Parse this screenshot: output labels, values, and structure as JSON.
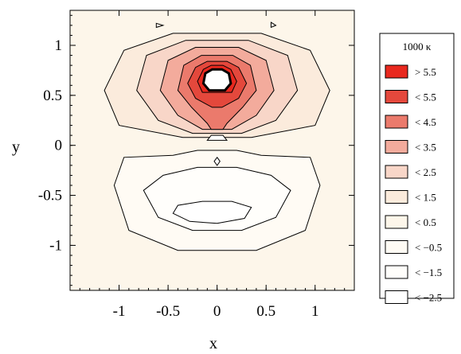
{
  "chart_data": {
    "type": "contour",
    "xlabel": "x",
    "ylabel": "y",
    "xlim": [
      -1.5,
      1.4
    ],
    "ylim": [
      -1.45,
      1.35
    ],
    "x_ticks": [
      -1,
      -0.5,
      0,
      0.5,
      1
    ],
    "x_tick_labels": [
      "-1",
      "-0.5",
      "0",
      "0.5",
      "1"
    ],
    "y_ticks": [
      1,
      0.5,
      0,
      -0.5,
      -1
    ],
    "y_tick_labels": [
      "1",
      "0.5",
      "0",
      "-0.5",
      "-1"
    ],
    "legend": {
      "title": "1000 κ",
      "placement": "right",
      "entries": [
        {
          "label": "> 5.5",
          "color": "#e8281e"
        },
        {
          "label": "< 5.5",
          "color": "#e4483c"
        },
        {
          "label": "< 4.5",
          "color": "#eb7a6c"
        },
        {
          "label": "< 3.5",
          "color": "#f3ab9c"
        },
        {
          "label": "< 2.5",
          "color": "#f8d6c8"
        },
        {
          "label": "< 1.5",
          "color": "#fbebdc"
        },
        {
          "label": "< 0.5",
          "color": "#fdf6ea"
        },
        {
          "label": "< −0.5",
          "color": "#fffbf4"
        },
        {
          "label": "< −1.5",
          "color": "#fffefb"
        },
        {
          "label": "< −2.5",
          "color": "#ffffff"
        }
      ]
    },
    "contours": [
      {
        "level": 0.5,
        "fill": "#fbebdc",
        "points": [
          [
            -0.95,
            0.95
          ],
          [
            -1.15,
            0.55
          ],
          [
            -1.0,
            0.2
          ],
          [
            -0.35,
            0.08
          ],
          [
            0.35,
            0.08
          ],
          [
            1.0,
            0.2
          ],
          [
            1.15,
            0.55
          ],
          [
            0.95,
            0.95
          ],
          [
            0.45,
            1.12
          ],
          [
            -0.45,
            1.12
          ]
        ]
      },
      {
        "level": 1.5,
        "fill": "#f8d6c8",
        "points": [
          [
            -0.72,
            0.9
          ],
          [
            -0.82,
            0.55
          ],
          [
            -0.6,
            0.25
          ],
          [
            -0.25,
            0.12
          ],
          [
            0.25,
            0.12
          ],
          [
            0.6,
            0.25
          ],
          [
            0.82,
            0.55
          ],
          [
            0.72,
            0.9
          ],
          [
            0.32,
            1.05
          ],
          [
            -0.32,
            1.05
          ]
        ]
      },
      {
        "level": 2.5,
        "fill": "#f3ab9c",
        "points": [
          [
            -0.5,
            0.85
          ],
          [
            -0.58,
            0.55
          ],
          [
            -0.4,
            0.3
          ],
          [
            -0.15,
            0.16
          ],
          [
            0.15,
            0.16
          ],
          [
            0.4,
            0.3
          ],
          [
            0.58,
            0.55
          ],
          [
            0.5,
            0.85
          ],
          [
            0.22,
            0.98
          ],
          [
            -0.22,
            0.98
          ]
        ]
      },
      {
        "level": 3.5,
        "fill": "#eb7a6c",
        "points": [
          [
            -0.34,
            0.8
          ],
          [
            -0.4,
            0.55
          ],
          [
            -0.26,
            0.38
          ],
          [
            -0.1,
            0.22
          ],
          [
            -0.06,
            0.16
          ],
          [
            0.06,
            0.16
          ],
          [
            0.1,
            0.22
          ],
          [
            0.26,
            0.38
          ],
          [
            0.4,
            0.55
          ],
          [
            0.34,
            0.8
          ],
          [
            0.16,
            0.9
          ],
          [
            -0.16,
            0.9
          ]
        ]
      },
      {
        "level": 4.5,
        "fill": "#e4483c",
        "points": [
          [
            -0.22,
            0.78
          ],
          [
            -0.3,
            0.62
          ],
          [
            -0.22,
            0.47
          ],
          [
            -0.05,
            0.38
          ],
          [
            0.05,
            0.38
          ],
          [
            0.22,
            0.47
          ],
          [
            0.3,
            0.62
          ],
          [
            0.22,
            0.78
          ],
          [
            0.1,
            0.84
          ],
          [
            -0.1,
            0.84
          ]
        ]
      },
      {
        "level": 5.5,
        "fill": "#e8281e",
        "points": [
          [
            -0.14,
            0.76
          ],
          [
            -0.2,
            0.64
          ],
          [
            -0.15,
            0.53
          ],
          [
            0.15,
            0.53
          ],
          [
            0.2,
            0.64
          ],
          [
            0.14,
            0.76
          ],
          [
            0.06,
            0.8
          ],
          [
            -0.06,
            0.8
          ]
        ]
      }
    ],
    "lower_contours": [
      {
        "level": -0.5,
        "fill": "#fffbf4",
        "points": [
          [
            -1.05,
            -0.4
          ],
          [
            -0.95,
            -0.12
          ],
          [
            -0.45,
            -0.1
          ],
          [
            -0.2,
            -0.05
          ],
          [
            0.2,
            -0.05
          ],
          [
            0.45,
            -0.1
          ],
          [
            0.95,
            -0.12
          ],
          [
            1.05,
            -0.4
          ],
          [
            0.9,
            -0.85
          ],
          [
            0.4,
            -1.05
          ],
          [
            -0.4,
            -1.05
          ],
          [
            -0.9,
            -0.85
          ]
        ]
      },
      {
        "level": -1.5,
        "fill": "#fffefb",
        "points": [
          [
            -0.75,
            -0.45
          ],
          [
            -0.55,
            -0.3
          ],
          [
            -0.2,
            -0.22
          ],
          [
            0.2,
            -0.22
          ],
          [
            0.55,
            -0.3
          ],
          [
            0.75,
            -0.45
          ],
          [
            0.6,
            -0.72
          ],
          [
            0.25,
            -0.85
          ],
          [
            -0.25,
            -0.85
          ],
          [
            -0.6,
            -0.72
          ]
        ]
      },
      {
        "level": -2.5,
        "fill": "#ffffff",
        "points": [
          [
            -0.45,
            -0.68
          ],
          [
            -0.4,
            -0.6
          ],
          [
            -0.15,
            -0.56
          ],
          [
            0.15,
            -0.56
          ],
          [
            0.35,
            -0.62
          ],
          [
            0.28,
            -0.73
          ],
          [
            0.0,
            -0.78
          ],
          [
            -0.28,
            -0.76
          ]
        ]
      }
    ],
    "core": {
      "value_region": "undefined",
      "points": [
        [
          -0.08,
          0.55
        ],
        [
          0.08,
          0.55
        ],
        [
          0.14,
          0.62
        ],
        [
          0.12,
          0.72
        ],
        [
          0.05,
          0.76
        ],
        [
          -0.05,
          0.76
        ],
        [
          -0.12,
          0.72
        ],
        [
          -0.14,
          0.62
        ]
      ]
    }
  }
}
